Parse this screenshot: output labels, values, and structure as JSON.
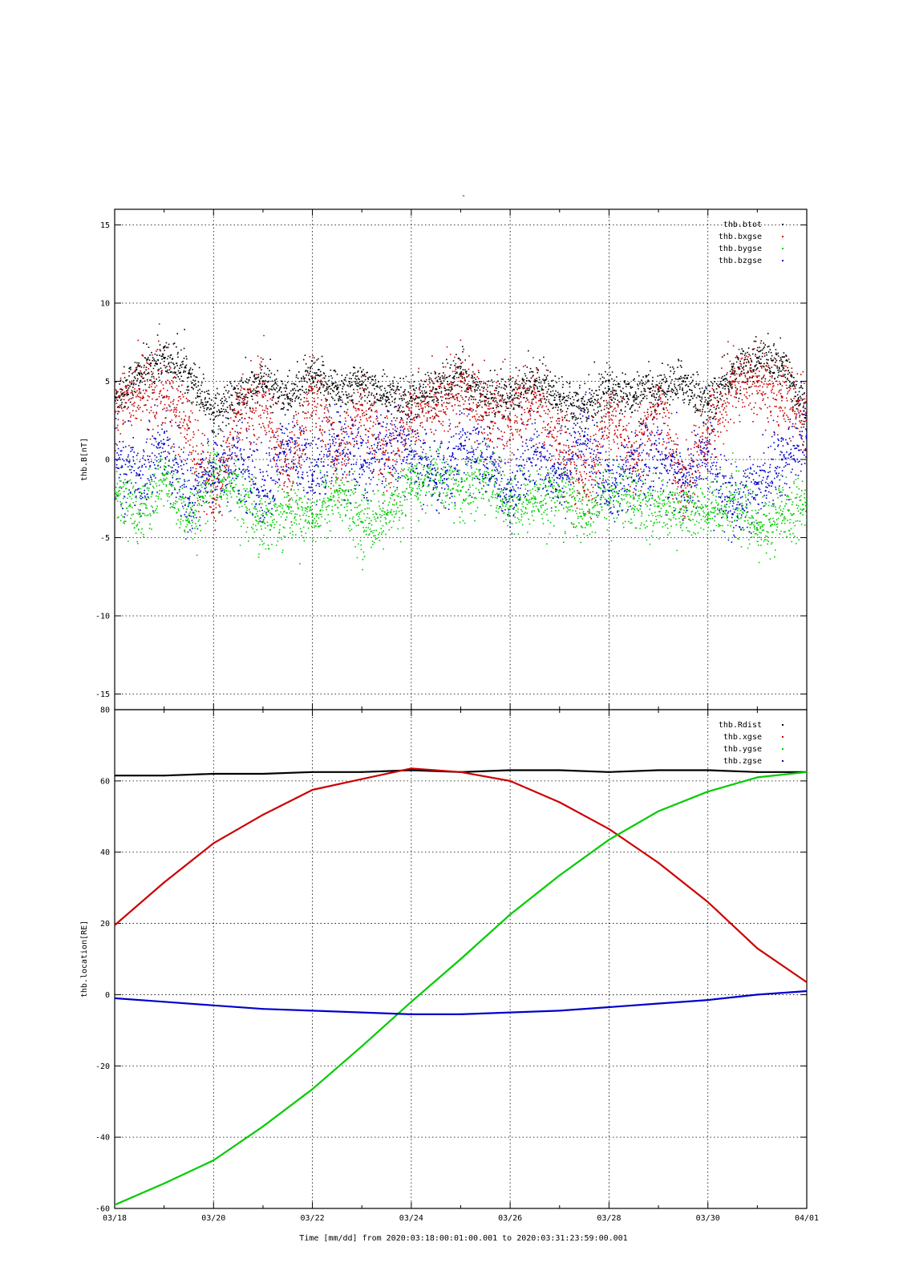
{
  "title": "-",
  "x_ticks": [
    "03/18",
    "03/20",
    "03/22",
    "03/24",
    "03/26",
    "03/28",
    "03/30",
    "04/01"
  ],
  "x_axis_label": "Time [mm/dd]  from 2020:03:18:00:01:00.001  to  2020:03:31:23:59:00.001",
  "colors": {
    "black": "#000000",
    "red": "#cc0000",
    "green": "#00cc00",
    "blue": "#0000cc"
  },
  "chart_data": [
    {
      "type": "scatter",
      "title": "-",
      "ylabel": "thb.B[nT]",
      "xlabel": "Time [mm/dd]  from 2020:03:18:00:01:00.001  to  2020:03:31:23:59:00.001",
      "x_range": [
        "2020-03-18",
        "2020-04-01"
      ],
      "ylim": [
        -16,
        16
      ],
      "y_ticks": [
        -15,
        -10,
        -5,
        0,
        5,
        10,
        15
      ],
      "grid": true,
      "legend_position": "top-right",
      "x": [
        "03/18",
        "03/18 12h",
        "03/19",
        "03/19 12h",
        "03/20",
        "03/20 12h",
        "03/21",
        "03/21 12h",
        "03/22",
        "03/22 12h",
        "03/23",
        "03/23 12h",
        "03/24",
        "03/24 12h",
        "03/25",
        "03/25 12h",
        "03/26",
        "03/26 12h",
        "03/27",
        "03/27 12h",
        "03/28",
        "03/28 12h",
        "03/29",
        "03/29 12h",
        "03/30",
        "03/30 12h",
        "03/31",
        "03/31 12h",
        "04/01"
      ],
      "series": [
        {
          "name": "thb.btot",
          "color": "#000000",
          "values": [
            4.0,
            5.5,
            6.5,
            5.5,
            3.0,
            4.0,
            5.0,
            4.0,
            5.2,
            4.5,
            4.8,
            4.0,
            4.0,
            4.5,
            5.5,
            4.0,
            4.0,
            5.0,
            4.0,
            3.5,
            4.5,
            4.0,
            4.5,
            5.0,
            3.5,
            5.5,
            6.5,
            6.0,
            3.0
          ]
        },
        {
          "name": "thb.bxgse",
          "color": "#cc0000",
          "values": [
            3.0,
            4.5,
            4.0,
            2.0,
            -2.5,
            3.0,
            4.0,
            -1.0,
            4.5,
            0.0,
            3.5,
            0.0,
            3.0,
            3.5,
            5.0,
            3.0,
            2.5,
            4.0,
            1.0,
            -2.0,
            3.0,
            0.0,
            3.5,
            -2.0,
            2.0,
            5.0,
            5.0,
            4.0,
            2.5
          ]
        },
        {
          "name": "thb.bygse",
          "color": "#00cc00",
          "values": [
            -2.0,
            -3.5,
            -1.0,
            -4.0,
            -1.0,
            -2.0,
            -4.0,
            -3.0,
            -3.5,
            -2.0,
            -4.0,
            -3.5,
            -1.5,
            -1.0,
            -2.0,
            -1.0,
            -3.0,
            -2.5,
            -2.0,
            -3.5,
            -2.0,
            -2.5,
            -3.0,
            -3.0,
            -3.5,
            -2.5,
            -4.5,
            -3.5,
            -3.0
          ]
        },
        {
          "name": "thb.bzgse",
          "color": "#0000cc",
          "values": [
            0.0,
            -1.0,
            1.0,
            -2.5,
            -0.5,
            0.0,
            -2.0,
            1.0,
            -1.0,
            1.5,
            -0.5,
            1.0,
            0.5,
            -1.5,
            1.0,
            0.0,
            -2.0,
            0.5,
            -1.0,
            1.5,
            -2.0,
            -0.5,
            0.5,
            -1.5,
            0.5,
            -3.5,
            -1.5,
            0.0,
            1.5
          ]
        }
      ]
    },
    {
      "type": "line",
      "title": "",
      "ylabel": "thb.location[RE]",
      "xlabel": "Time [mm/dd]  from 2020:03:18:00:01:00.001  to  2020:03:31:23:59:00.001",
      "x_range": [
        "2020-03-18",
        "2020-04-01"
      ],
      "ylim": [
        -60,
        80
      ],
      "y_ticks": [
        -60,
        -40,
        -20,
        0,
        20,
        40,
        60,
        80
      ],
      "grid": true,
      "legend_position": "top-right",
      "x": [
        "03/18",
        "03/19",
        "03/20",
        "03/21",
        "03/22",
        "03/23",
        "03/24",
        "03/25",
        "03/26",
        "03/27",
        "03/28",
        "03/29",
        "03/30",
        "03/31",
        "04/01"
      ],
      "series": [
        {
          "name": "thb.Rdist",
          "color": "#000000",
          "values": [
            61.5,
            61.5,
            62.0,
            62.0,
            62.5,
            62.5,
            63.0,
            62.5,
            63.0,
            63.0,
            62.5,
            63.0,
            63.0,
            62.5,
            62.5
          ]
        },
        {
          "name": "thb.xgse",
          "color": "#cc0000",
          "values": [
            19.5,
            31.5,
            42.5,
            50.5,
            57.5,
            60.5,
            63.5,
            62.5,
            60.0,
            54.0,
            46.5,
            37.0,
            26.0,
            13.0,
            3.5
          ]
        },
        {
          "name": "thb.ygse",
          "color": "#00cc00",
          "values": [
            -59.0,
            -53.0,
            -46.5,
            -37.0,
            -26.5,
            -14.5,
            -2.0,
            10.0,
            22.5,
            33.5,
            43.5,
            51.5,
            57.0,
            61.0,
            62.5
          ]
        },
        {
          "name": "thb.zgse",
          "color": "#0000cc",
          "values": [
            -1.0,
            -2.0,
            -3.0,
            -4.0,
            -4.5,
            -5.0,
            -5.5,
            -5.5,
            -5.0,
            -4.5,
            -3.5,
            -2.5,
            -1.5,
            0.0,
            1.0
          ]
        }
      ]
    }
  ]
}
